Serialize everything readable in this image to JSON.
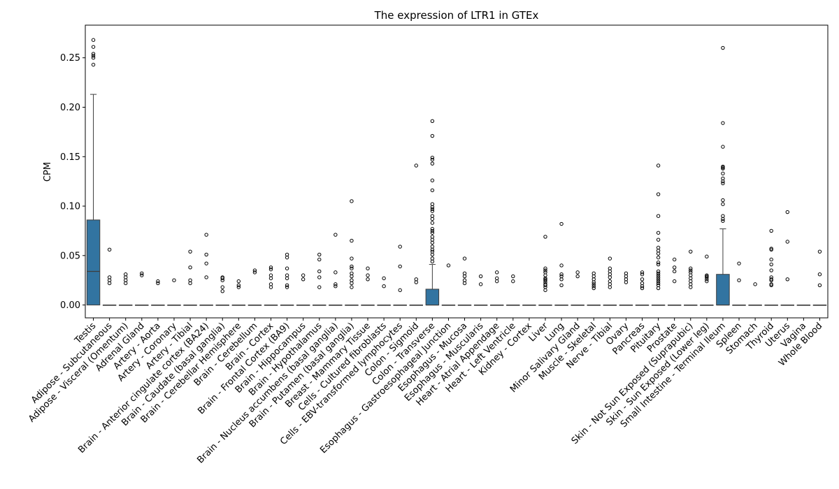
{
  "chart_data": {
    "type": "box",
    "title": "The expression of LTR1 in GTEx",
    "xlabel": "",
    "ylabel": "CPM",
    "ylim": [
      -0.013,
      0.283
    ],
    "yticks": [
      0.0,
      0.05,
      0.1,
      0.15,
      0.2,
      0.25
    ],
    "ytick_labels": [
      "0.00",
      "0.05",
      "0.10",
      "0.15",
      "0.20",
      "0.25"
    ],
    "grid": false,
    "box_color": "#3274a1",
    "categories": [
      "Testis",
      "Adipose - Subcutaneous",
      "Adipose - Visceral (Omentum)",
      "Adrenal Gland",
      "Artery - Aorta",
      "Artery - Coronary",
      "Artery - Tibial",
      "Brain - Anterior cingulate cortex (BA24)",
      "Brain - Caudate (basal ganglia)",
      "Brain - Cerebellar Hemisphere",
      "Brain - Cerebellum",
      "Brain - Cortex",
      "Brain - Frontal Cortex (BA9)",
      "Brain - Hippocampus",
      "Brain - Hypothalamus",
      "Brain - Nucleus accumbens (basal ganglia)",
      "Brain - Putamen (basal ganglia)",
      "Breast - Mammary Tissue",
      "Cells - Cultured fibroblasts",
      "Cells - EBV-transformed lymphocytes",
      "Colon - Sigmoid",
      "Colon - Transverse",
      "Esophagus - Gastroesophageal Junction",
      "Esophagus - Mucosa",
      "Esophagus - Muscularis",
      "Heart - Atrial Appendage",
      "Heart - Left Ventricle",
      "Kidney - Cortex",
      "Liver",
      "Lung",
      "Minor Salivary Gland",
      "Muscle - Skeletal",
      "Nerve - Tibial",
      "Ovary",
      "Pancreas",
      "Pituitary",
      "Prostate",
      "Skin - Not Sun Exposed (Suprapubic)",
      "Skin - Sun Exposed (Lower leg)",
      "Small Intestine - Terminal Ileum",
      "Spleen",
      "Stomach",
      "Thyroid",
      "Uterus",
      "Vagina",
      "Whole Blood"
    ],
    "boxes": [
      {
        "q1": 0.0,
        "median": 0.034,
        "q3": 0.086,
        "whislo": 0.0,
        "whishi": 0.213,
        "fliers": [
          0.268,
          0.261,
          0.254,
          0.252,
          0.25,
          0.243
        ]
      },
      {
        "q1": 0,
        "median": 0,
        "q3": 0,
        "whislo": 0,
        "whishi": 0,
        "fliers": [
          0.056,
          0.028,
          0.025,
          0.022
        ]
      },
      {
        "q1": 0,
        "median": 0,
        "q3": 0,
        "whislo": 0,
        "whishi": 0,
        "fliers": [
          0.031,
          0.028,
          0.025,
          0.022
        ]
      },
      {
        "q1": 0,
        "median": 0,
        "q3": 0,
        "whislo": 0,
        "whishi": 0,
        "fliers": [
          0.032,
          0.03
        ]
      },
      {
        "q1": 0,
        "median": 0,
        "q3": 0,
        "whislo": 0,
        "whishi": 0,
        "fliers": [
          0.024,
          0.022
        ]
      },
      {
        "q1": 0,
        "median": 0,
        "q3": 0,
        "whislo": 0,
        "whishi": 0,
        "fliers": [
          0.025
        ]
      },
      {
        "q1": 0,
        "median": 0,
        "q3": 0,
        "whislo": 0,
        "whishi": 0,
        "fliers": [
          0.054,
          0.038,
          0.025,
          0.022
        ]
      },
      {
        "q1": 0,
        "median": 0,
        "q3": 0,
        "whislo": 0,
        "whishi": 0,
        "fliers": [
          0.071,
          0.051,
          0.042,
          0.028
        ]
      },
      {
        "q1": 0,
        "median": 0,
        "q3": 0,
        "whislo": 0,
        "whishi": 0,
        "fliers": [
          0.028,
          0.027,
          0.025,
          0.018,
          0.014
        ]
      },
      {
        "q1": 0,
        "median": 0,
        "q3": 0,
        "whislo": 0,
        "whishi": 0,
        "fliers": [
          0.024,
          0.02,
          0.018
        ]
      },
      {
        "q1": 0,
        "median": 0,
        "q3": 0,
        "whislo": 0,
        "whishi": 0,
        "fliers": [
          0.035,
          0.033
        ]
      },
      {
        "q1": 0,
        "median": 0,
        "q3": 0,
        "whislo": 0,
        "whishi": 0,
        "fliers": [
          0.038,
          0.036,
          0.03,
          0.027,
          0.021,
          0.018
        ]
      },
      {
        "q1": 0,
        "median": 0,
        "q3": 0,
        "whislo": 0,
        "whishi": 0,
        "fliers": [
          0.051,
          0.048,
          0.037,
          0.03,
          0.027,
          0.02,
          0.018
        ]
      },
      {
        "q1": 0,
        "median": 0,
        "q3": 0,
        "whislo": 0,
        "whishi": 0,
        "fliers": [
          0.03,
          0.026
        ]
      },
      {
        "q1": 0,
        "median": 0,
        "q3": 0,
        "whislo": 0,
        "whishi": 0,
        "fliers": [
          0.051,
          0.046,
          0.034,
          0.028,
          0.018
        ]
      },
      {
        "q1": 0,
        "median": 0,
        "q3": 0,
        "whislo": 0,
        "whishi": 0,
        "fliers": [
          0.071,
          0.033,
          0.021,
          0.019
        ]
      },
      {
        "q1": 0,
        "median": 0,
        "q3": 0,
        "whislo": 0,
        "whishi": 0,
        "fliers": [
          0.105,
          0.065,
          0.047,
          0.039,
          0.037,
          0.032,
          0.029,
          0.025,
          0.022,
          0.018
        ]
      },
      {
        "q1": 0,
        "median": 0,
        "q3": 0,
        "whislo": 0,
        "whishi": 0,
        "fliers": [
          0.037,
          0.03,
          0.026
        ]
      },
      {
        "q1": 0,
        "median": 0,
        "q3": 0,
        "whislo": 0,
        "whishi": 0,
        "fliers": [
          0.027,
          0.019
        ]
      },
      {
        "q1": 0,
        "median": 0,
        "q3": 0,
        "whislo": 0,
        "whishi": 0,
        "fliers": [
          0.059,
          0.039,
          0.015
        ]
      },
      {
        "q1": 0,
        "median": 0,
        "q3": 0,
        "whislo": 0,
        "whishi": 0,
        "fliers": [
          0.141,
          0.026,
          0.023
        ]
      },
      {
        "q1": 0.0,
        "median": 0.0,
        "q3": 0.016,
        "whislo": 0.0,
        "whishi": 0.041,
        "fliers": [
          0.186,
          0.171,
          0.149,
          0.147,
          0.143,
          0.126,
          0.116,
          0.102,
          0.099,
          0.097,
          0.095,
          0.09,
          0.087,
          0.083,
          0.077,
          0.075,
          0.073,
          0.069,
          0.066,
          0.063,
          0.059,
          0.056,
          0.054,
          0.051,
          0.047,
          0.044
        ]
      },
      {
        "q1": 0,
        "median": 0,
        "q3": 0,
        "whislo": 0,
        "whishi": 0,
        "fliers": [
          0.04
        ]
      },
      {
        "q1": 0,
        "median": 0,
        "q3": 0,
        "whislo": 0,
        "whishi": 0,
        "fliers": [
          0.047,
          0.032,
          0.029,
          0.025,
          0.022
        ]
      },
      {
        "q1": 0,
        "median": 0,
        "q3": 0,
        "whislo": 0,
        "whishi": 0,
        "fliers": [
          0.029,
          0.021
        ]
      },
      {
        "q1": 0,
        "median": 0,
        "q3": 0,
        "whislo": 0,
        "whishi": 0,
        "fliers": [
          0.033,
          0.027,
          0.024
        ]
      },
      {
        "q1": 0,
        "median": 0,
        "q3": 0,
        "whislo": 0,
        "whishi": 0,
        "fliers": [
          0.029,
          0.024
        ]
      },
      {
        "q1": 0,
        "median": 0,
        "q3": 0,
        "whislo": 0,
        "whishi": 0,
        "fliers": []
      },
      {
        "q1": 0,
        "median": 0,
        "q3": 0,
        "whislo": 0,
        "whishi": 0,
        "fliers": [
          0.069,
          0.037,
          0.035,
          0.033,
          0.03,
          0.027,
          0.026,
          0.025,
          0.023,
          0.021,
          0.02,
          0.018,
          0.015
        ]
      },
      {
        "q1": 0,
        "median": 0,
        "q3": 0,
        "whislo": 0,
        "whishi": 0,
        "fliers": [
          0.082,
          0.04,
          0.031,
          0.029,
          0.026,
          0.02
        ]
      },
      {
        "q1": 0,
        "median": 0,
        "q3": 0,
        "whislo": 0,
        "whishi": 0,
        "fliers": [
          0.033,
          0.029
        ]
      },
      {
        "q1": 0,
        "median": 0,
        "q3": 0,
        "whislo": 0,
        "whishi": 0,
        "fliers": [
          0.032,
          0.029,
          0.026,
          0.023,
          0.021,
          0.019,
          0.017
        ]
      },
      {
        "q1": 0,
        "median": 0,
        "q3": 0,
        "whislo": 0,
        "whishi": 0,
        "fliers": [
          0.047,
          0.037,
          0.034,
          0.031,
          0.028,
          0.024,
          0.021,
          0.018
        ]
      },
      {
        "q1": 0,
        "median": 0,
        "q3": 0,
        "whislo": 0,
        "whishi": 0,
        "fliers": [
          0.032,
          0.029,
          0.026,
          0.023
        ]
      },
      {
        "q1": 0,
        "median": 0,
        "q3": 0,
        "whislo": 0,
        "whishi": 0,
        "fliers": [
          0.033,
          0.031,
          0.026,
          0.022,
          0.019,
          0.017
        ]
      },
      {
        "q1": 0,
        "median": 0,
        "q3": 0,
        "whislo": 0,
        "whishi": 0,
        "fliers": [
          0.141,
          0.112,
          0.09,
          0.073,
          0.066,
          0.058,
          0.055,
          0.052,
          0.048,
          0.043,
          0.041,
          0.034,
          0.032,
          0.03,
          0.028,
          0.026,
          0.024,
          0.022,
          0.02,
          0.017
        ]
      },
      {
        "q1": 0,
        "median": 0,
        "q3": 0,
        "whislo": 0,
        "whishi": 0,
        "fliers": [
          0.046,
          0.038,
          0.034,
          0.024
        ]
      },
      {
        "q1": 0,
        "median": 0,
        "q3": 0,
        "whislo": 0,
        "whishi": 0,
        "fliers": [
          0.054,
          0.037,
          0.035,
          0.033,
          0.03,
          0.027,
          0.024,
          0.021,
          0.018
        ]
      },
      {
        "q1": 0,
        "median": 0,
        "q3": 0,
        "whislo": 0,
        "whishi": 0,
        "fliers": [
          0.049,
          0.03,
          0.029,
          0.028,
          0.026,
          0.024
        ]
      },
      {
        "q1": 0.0,
        "median": 0.0,
        "q3": 0.031,
        "whislo": 0.0,
        "whishi": 0.077,
        "fliers": [
          0.26,
          0.184,
          0.16,
          0.14,
          0.139,
          0.138,
          0.133,
          0.128,
          0.125,
          0.123,
          0.106,
          0.102,
          0.09,
          0.087,
          0.085
        ]
      },
      {
        "q1": 0,
        "median": 0,
        "q3": 0,
        "whislo": 0,
        "whishi": 0,
        "fliers": [
          0.042,
          0.025
        ]
      },
      {
        "q1": 0,
        "median": 0,
        "q3": 0,
        "whislo": 0,
        "whishi": 0,
        "fliers": [
          0.021
        ]
      },
      {
        "q1": 0,
        "median": 0,
        "q3": 0,
        "whislo": 0,
        "whishi": 0,
        "fliers": [
          0.075,
          0.057,
          0.056,
          0.046,
          0.041,
          0.035,
          0.028,
          0.026,
          0.025,
          0.021,
          0.02
        ]
      },
      {
        "q1": 0,
        "median": 0,
        "q3": 0,
        "whislo": 0,
        "whishi": 0,
        "fliers": [
          0.094,
          0.064,
          0.026
        ]
      },
      {
        "q1": 0,
        "median": 0,
        "q3": 0,
        "whislo": 0,
        "whishi": 0,
        "fliers": []
      },
      {
        "q1": 0,
        "median": 0,
        "q3": 0,
        "whislo": 0,
        "whishi": 0,
        "fliers": [
          0.054,
          0.031,
          0.02
        ]
      }
    ]
  }
}
